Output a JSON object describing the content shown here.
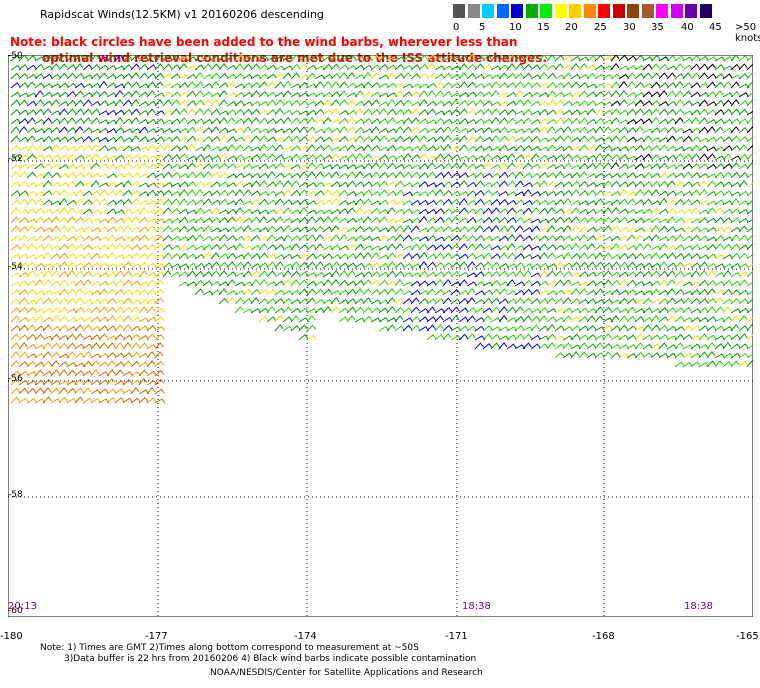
{
  "header": {
    "title": "Rapidscat Winds(12.5KM) v1 20160206 descending",
    "note_line1": "Note: black circles have been added to the wind barbs, wherever less than",
    "note_line2": "optimal wind retrieval conditions are met due to the ISS attitude changes."
  },
  "color_scale": {
    "labels": [
      "0",
      "5",
      "10",
      "15",
      "20",
      "25",
      "30",
      "35",
      "40",
      "45",
      ">50 knots"
    ],
    "colors": [
      "#555555",
      "#888888",
      "#00ccff",
      "#0066ff",
      "#0000cc",
      "#00aa00",
      "#00ee00",
      "#ffff00",
      "#ffcc00",
      "#ff8800",
      "#ff0000",
      "#cc0000",
      "#8b4513",
      "#aa5533",
      "#ff00ff",
      "#cc00ff",
      "#6600aa",
      "#220066"
    ]
  },
  "map": {
    "lat_labels": [
      "-50",
      "-52",
      "-54",
      "-56",
      "-58",
      "-60"
    ],
    "lon_labels": [
      "-180",
      "-177",
      "-174",
      "-171",
      "-168",
      "-165"
    ],
    "time_labels": [
      "20:13",
      "18:38",
      "18:38"
    ],
    "barb_colors": {
      "green": "#009900",
      "lime": "#22cc00",
      "yellow": "#eedd00",
      "orange": "#ee9900",
      "brown": "#cc6600",
      "blue": "#0000ee",
      "black": "#000000"
    }
  },
  "footer": {
    "notes_line1": "Note: 1) Times are GMT 2)Times along bottom correspond to measurement at ~50S",
    "notes_line2": "3)Data buffer is 22 hrs from 20160206 4) Black wind barbs indicate possible contamination",
    "credit": "NOAA/NESDIS/Center for Satellite Applications and Research"
  }
}
